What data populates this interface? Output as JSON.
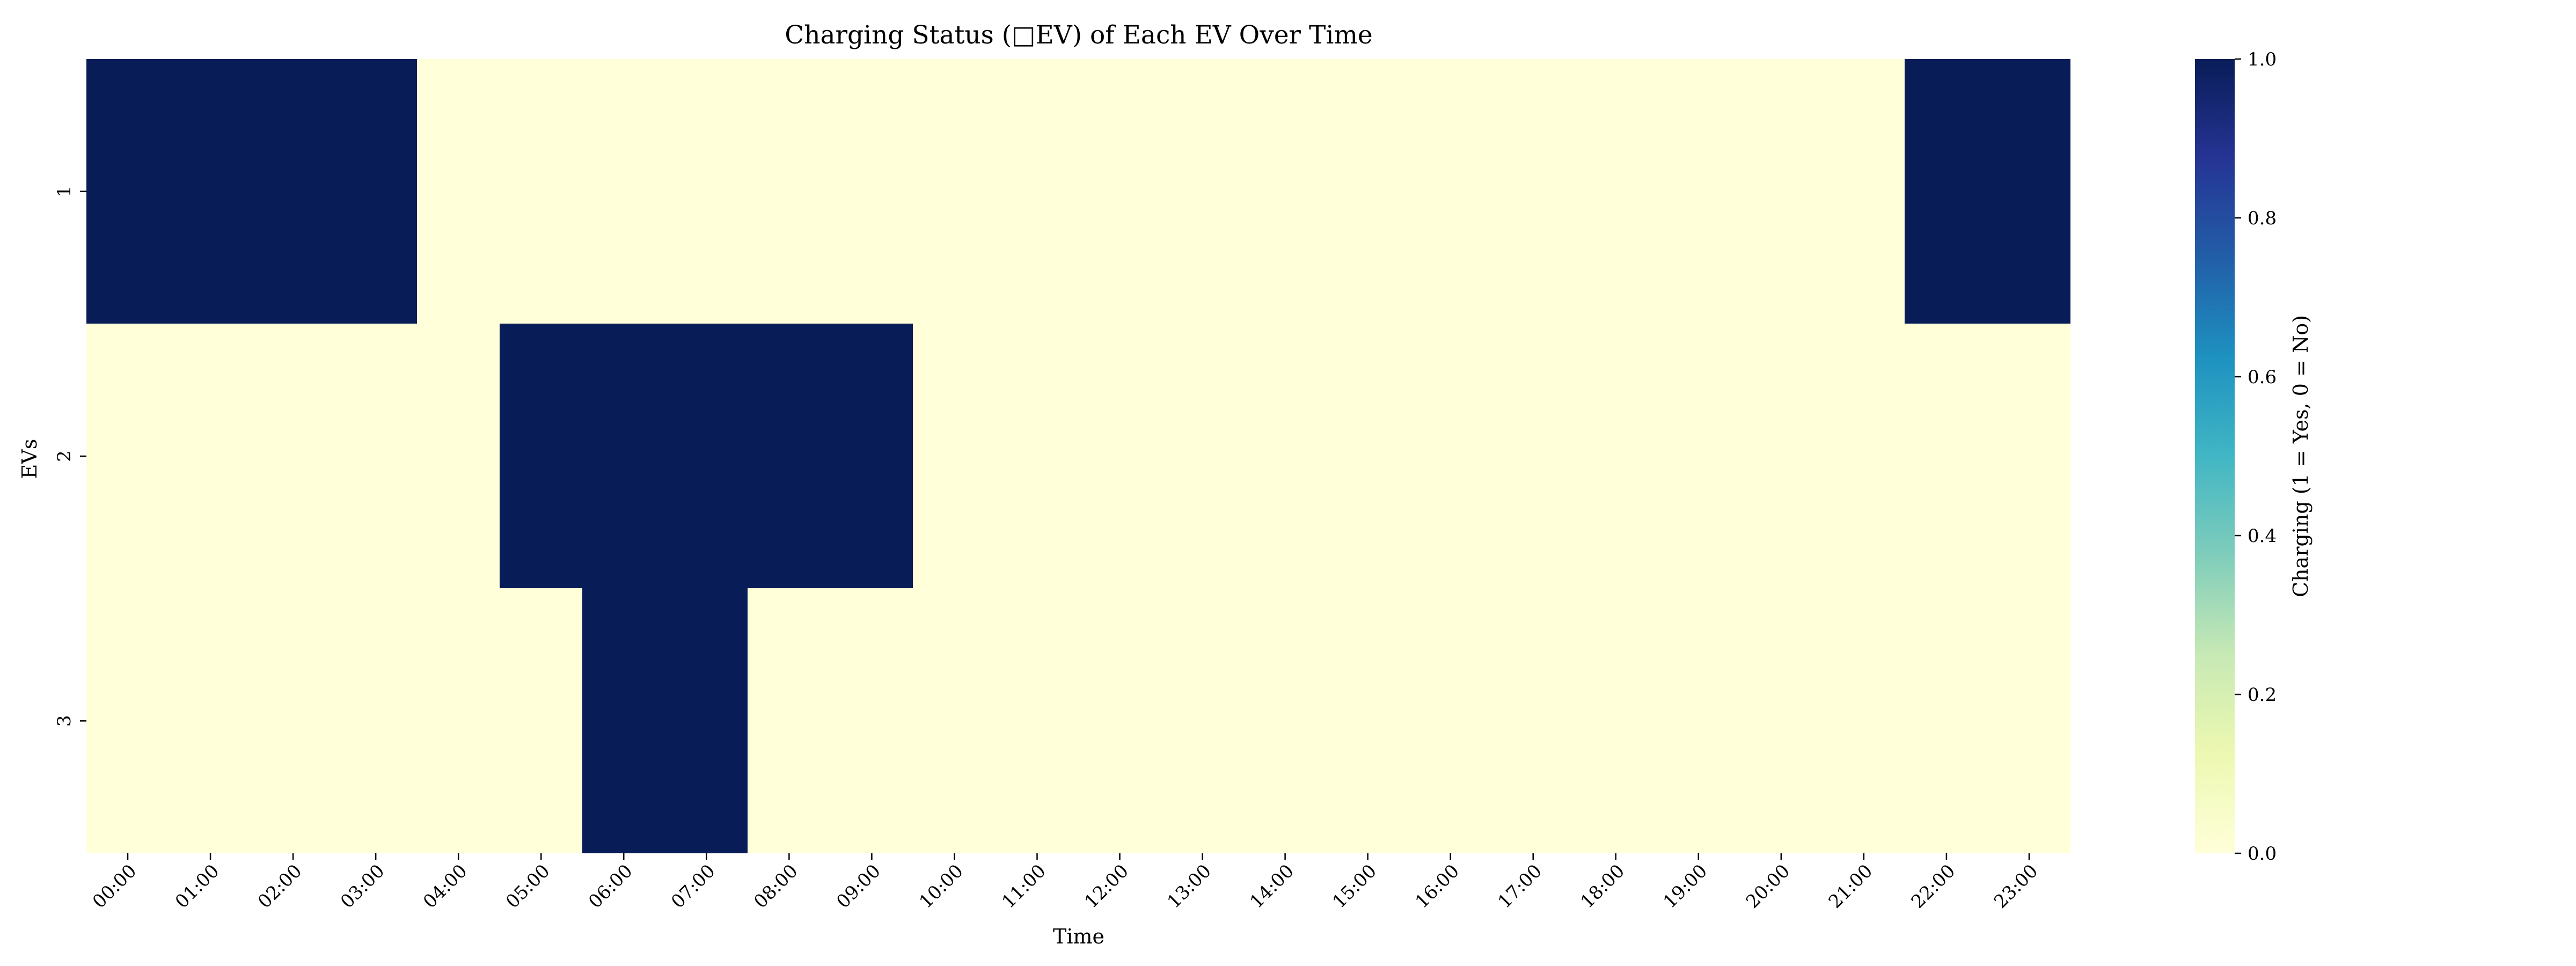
{
  "chart_data": {
    "type": "heatmap",
    "title": "Charging Status (□EV) of Each EV Over Time",
    "xlabel": "Time",
    "ylabel": "EVs",
    "x": [
      "00:00",
      "01:00",
      "02:00",
      "03:00",
      "04:00",
      "05:00",
      "06:00",
      "07:00",
      "08:00",
      "09:00",
      "10:00",
      "11:00",
      "12:00",
      "13:00",
      "14:00",
      "15:00",
      "16:00",
      "17:00",
      "18:00",
      "19:00",
      "20:00",
      "21:00",
      "22:00",
      "23:00"
    ],
    "y": [
      "1",
      "2",
      "3"
    ],
    "values": [
      [
        1,
        1,
        1,
        1,
        0,
        0,
        0,
        0,
        0,
        0,
        0,
        0,
        0,
        0,
        0,
        0,
        0,
        0,
        0,
        0,
        0,
        0,
        1,
        1
      ],
      [
        0,
        0,
        0,
        0,
        0,
        1,
        1,
        1,
        1,
        1,
        0,
        0,
        0,
        0,
        0,
        0,
        0,
        0,
        0,
        0,
        0,
        0,
        0,
        0
      ],
      [
        0,
        0,
        0,
        0,
        0,
        0,
        1,
        1,
        0,
        0,
        0,
        0,
        0,
        0,
        0,
        0,
        0,
        0,
        0,
        0,
        0,
        0,
        0,
        0
      ]
    ],
    "colormap": "YlGnBu",
    "color_low": "#ffffd9",
    "color_high": "#081d58",
    "colorbar": {
      "label": "Charging (1 = Yes, 0 = No)",
      "range": [
        0.0,
        1.0
      ],
      "ticks": [
        "0.0",
        "0.2",
        "0.4",
        "0.6",
        "0.8",
        "1.0"
      ]
    },
    "grid": false,
    "legend": "colorbar-right"
  }
}
